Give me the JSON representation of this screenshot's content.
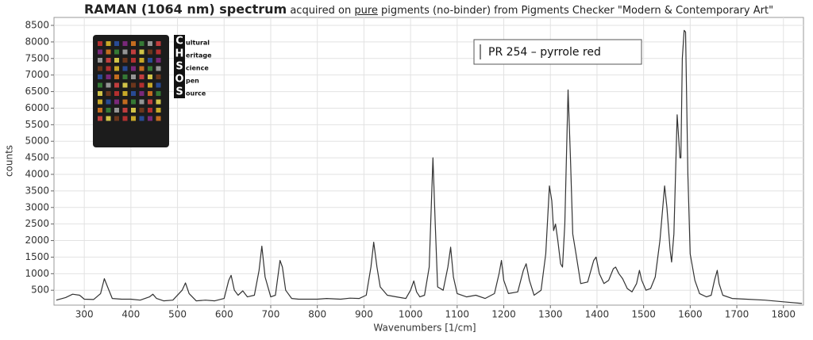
{
  "chart_data": {
    "type": "line",
    "title": {
      "bold": "RAMAN (1064 nm) spectrum",
      "pre": "acquired on",
      "underlined": "pure",
      "post": "pigments (no-binder) from Pigments Checker \"Modern & Contemporary Art\""
    },
    "x_label": "Wavenumbers [1/cm]",
    "y_label": "counts",
    "xlim": [
      235,
      1843
    ],
    "ylim": [
      50,
      8740
    ],
    "xticks": [
      300,
      400,
      500,
      600,
      700,
      800,
      900,
      1000,
      1100,
      1200,
      1300,
      1400,
      1500,
      1600,
      1700,
      1800
    ],
    "yticks": [
      500,
      1000,
      1500,
      2000,
      2500,
      3000,
      3500,
      4000,
      4500,
      5000,
      5500,
      6000,
      6500,
      7000,
      7500,
      8000,
      8500
    ],
    "grid": true,
    "legend": "top-right",
    "logo": {
      "letters": [
        "C",
        "H",
        "S",
        "O",
        "S"
      ],
      "words": [
        "ultural",
        "eritage",
        "cience",
        "pen",
        "ource"
      ]
    },
    "x": [
      240,
      260,
      275,
      290,
      300,
      320,
      335,
      343,
      350,
      360,
      380,
      400,
      420,
      440,
      447,
      455,
      470,
      490,
      510,
      517,
      525,
      540,
      560,
      580,
      600,
      610,
      615,
      622,
      630,
      640,
      650,
      665,
      675,
      681,
      688,
      700,
      710,
      720,
      725,
      732,
      745,
      760,
      780,
      800,
      820,
      850,
      870,
      890,
      905,
      915,
      921,
      928,
      935,
      950,
      970,
      990,
      1000,
      1007,
      1013,
      1020,
      1030,
      1040,
      1048,
      1053,
      1058,
      1070,
      1080,
      1086,
      1092,
      1100,
      1120,
      1140,
      1160,
      1180,
      1190,
      1195,
      1200,
      1210,
      1230,
      1242,
      1248,
      1255,
      1265,
      1280,
      1290,
      1298,
      1303,
      1307,
      1311,
      1316,
      1322,
      1326,
      1331,
      1338,
      1343,
      1348,
      1355,
      1365,
      1380,
      1393,
      1398,
      1405,
      1415,
      1425,
      1435,
      1440,
      1447,
      1455,
      1465,
      1475,
      1485,
      1491,
      1496,
      1505,
      1515,
      1525,
      1535,
      1545,
      1550,
      1557,
      1560,
      1565,
      1572,
      1578,
      1580,
      1583,
      1587,
      1590,
      1595,
      1600,
      1610,
      1620,
      1635,
      1645,
      1652,
      1658,
      1662,
      1670,
      1690,
      1720,
      1760,
      1800,
      1840
    ],
    "series": [
      {
        "name": "PR 254 – pyrrole red",
        "color": "#333333",
        "values": [
          200,
          280,
          380,
          350,
          230,
          220,
          400,
          850,
          600,
          250,
          230,
          230,
          200,
          300,
          380,
          250,
          180,
          200,
          500,
          720,
          400,
          180,
          200,
          180,
          250,
          800,
          950,
          500,
          350,
          480,
          300,
          350,
          1100,
          1830,
          900,
          300,
          350,
          1400,
          1200,
          500,
          250,
          230,
          230,
          230,
          250,
          230,
          260,
          250,
          350,
          1200,
          1950,
          1200,
          600,
          350,
          300,
          250,
          500,
          780,
          450,
          300,
          350,
          1200,
          4500,
          2500,
          600,
          500,
          1200,
          1800,
          900,
          400,
          300,
          350,
          250,
          400,
          1000,
          1400,
          800,
          400,
          450,
          1100,
          1300,
          800,
          350,
          500,
          1600,
          3650,
          3200,
          2300,
          2500,
          2000,
          1300,
          1200,
          2500,
          6550,
          4500,
          2200,
          1600,
          700,
          750,
          1400,
          1500,
          1000,
          700,
          800,
          1150,
          1200,
          1000,
          850,
          550,
          450,
          700,
          1100,
          800,
          500,
          550,
          900,
          2000,
          3650,
          3000,
          1700,
          1350,
          2200,
          5800,
          4500,
          4500,
          7500,
          8350,
          8300,
          4000,
          1600,
          800,
          400,
          300,
          350,
          800,
          1100,
          700,
          350,
          250,
          230,
          200,
          150,
          100
        ]
      }
    ]
  }
}
